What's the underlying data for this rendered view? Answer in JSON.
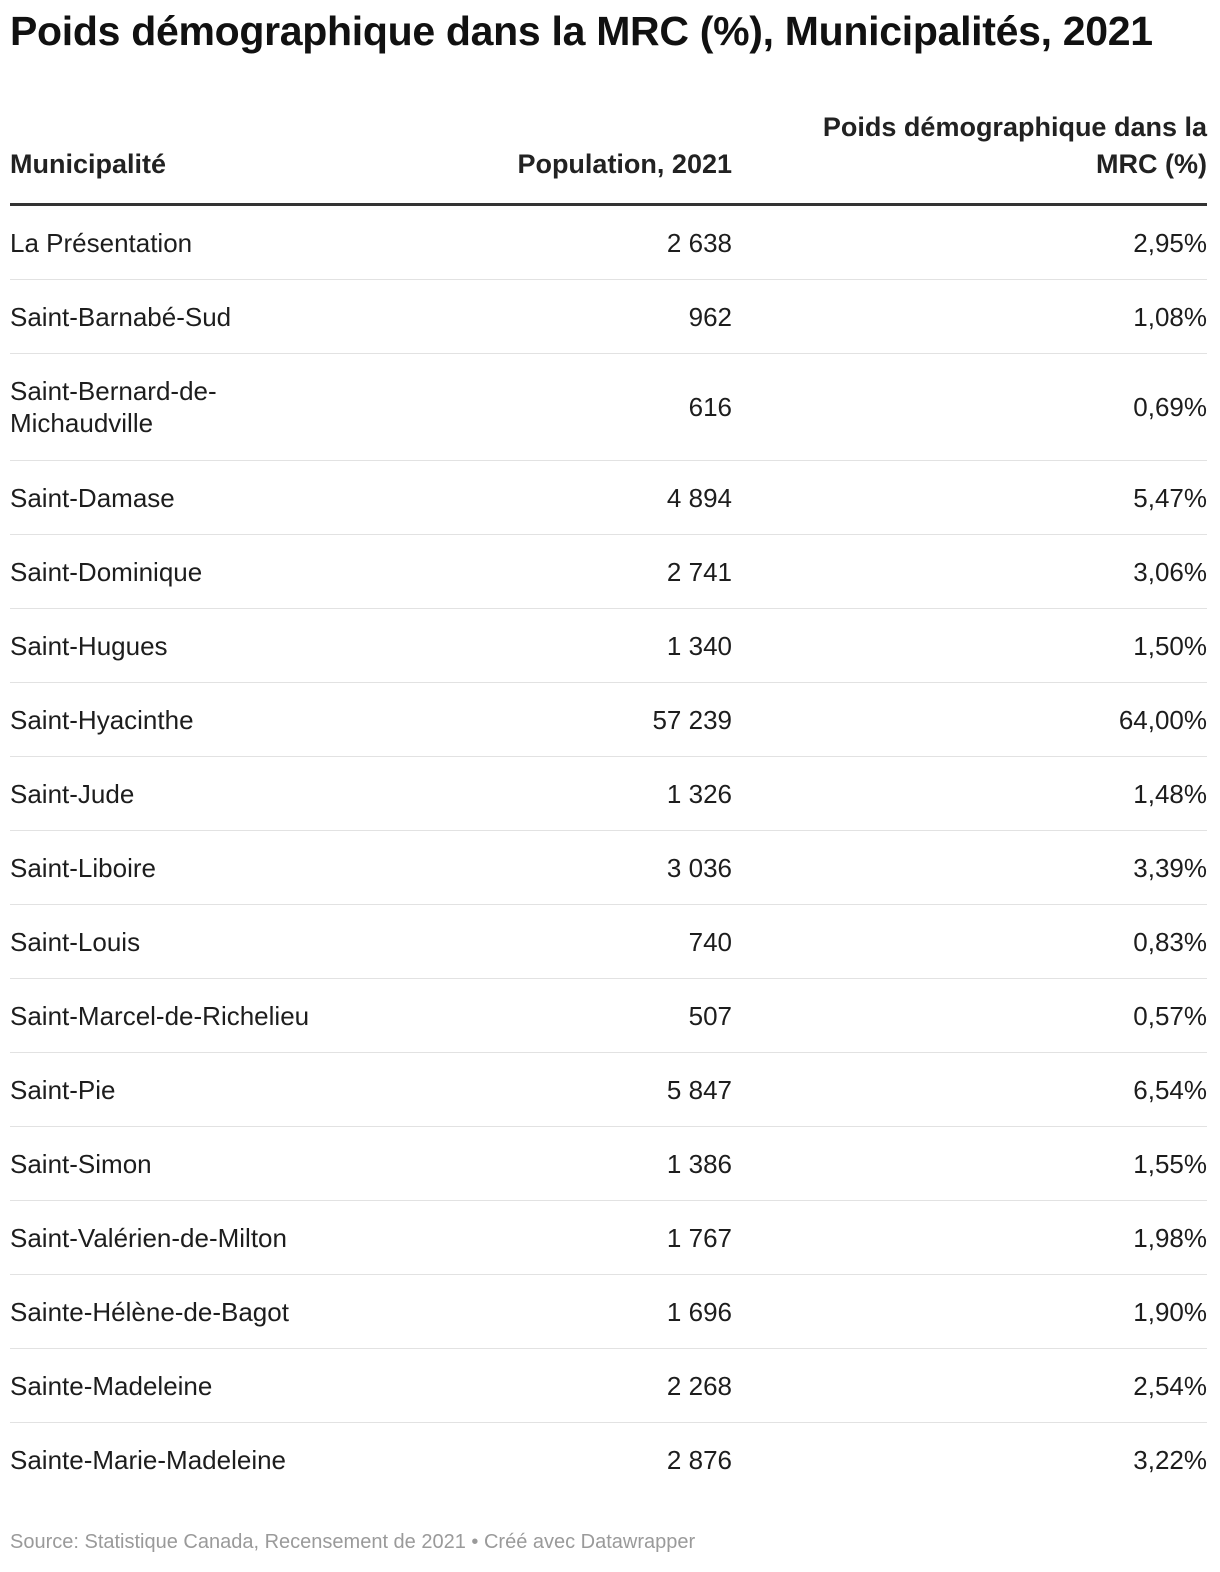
{
  "title": "Poids démographique dans la MRC (%), Municipalités, 2021",
  "headers": {
    "municipality": "Municipalité",
    "population": "Population, 2021",
    "weight": "Poids démographique dans la MRC (%)"
  },
  "rows": [
    {
      "name": "La Présentation",
      "population": "2 638",
      "weight": "2,95%"
    },
    {
      "name": "Saint-Barnabé-Sud",
      "population": "962",
      "weight": "1,08%"
    },
    {
      "name": "Saint-Bernard-de-Michaudville",
      "population": "616",
      "weight": "0,69%"
    },
    {
      "name": "Saint-Damase",
      "population": "4 894",
      "weight": "5,47%"
    },
    {
      "name": "Saint-Dominique",
      "population": "2 741",
      "weight": "3,06%"
    },
    {
      "name": "Saint-Hugues",
      "population": "1 340",
      "weight": "1,50%"
    },
    {
      "name": "Saint-Hyacinthe",
      "population": "57 239",
      "weight": "64,00%"
    },
    {
      "name": "Saint-Jude",
      "population": "1 326",
      "weight": "1,48%"
    },
    {
      "name": "Saint-Liboire",
      "population": "3 036",
      "weight": "3,39%"
    },
    {
      "name": "Saint-Louis",
      "population": "740",
      "weight": "0,83%"
    },
    {
      "name": "Saint-Marcel-de-Richelieu",
      "population": "507",
      "weight": "0,57%"
    },
    {
      "name": "Saint-Pie",
      "population": "5 847",
      "weight": "6,54%"
    },
    {
      "name": "Saint-Simon",
      "population": "1 386",
      "weight": "1,55%"
    },
    {
      "name": "Saint-Valérien-de-Milton",
      "population": "1 767",
      "weight": "1,98%"
    },
    {
      "name": "Sainte-Hélène-de-Bagot",
      "population": "1 696",
      "weight": "1,90%"
    },
    {
      "name": "Sainte-Madeleine",
      "population": "2 268",
      "weight": "2,54%"
    },
    {
      "name": "Sainte-Marie-Madeleine",
      "population": "2 876",
      "weight": "3,22%"
    }
  ],
  "footer": "Source: Statistique Canada, Recensement de 2021 • Créé avec Datawrapper",
  "chart_data": {
    "type": "table",
    "title": "Poids démographique dans la MRC (%), Municipalités, 2021",
    "columns": [
      "Municipalité",
      "Population, 2021",
      "Poids démographique dans la MRC (%)"
    ],
    "categories": [
      "La Présentation",
      "Saint-Barnabé-Sud",
      "Saint-Bernard-de-Michaudville",
      "Saint-Damase",
      "Saint-Dominique",
      "Saint-Hugues",
      "Saint-Hyacinthe",
      "Saint-Jude",
      "Saint-Liboire",
      "Saint-Louis",
      "Saint-Marcel-de-Richelieu",
      "Saint-Pie",
      "Saint-Simon",
      "Saint-Valérien-de-Milton",
      "Sainte-Hélène-de-Bagot",
      "Sainte-Madeleine",
      "Sainte-Marie-Madeleine"
    ],
    "series": [
      {
        "name": "Population, 2021",
        "values": [
          2638,
          962,
          616,
          4894,
          2741,
          1340,
          57239,
          1326,
          3036,
          740,
          507,
          5847,
          1386,
          1767,
          1696,
          2268,
          2876
        ]
      },
      {
        "name": "Poids démographique dans la MRC (%)",
        "values": [
          2.95,
          1.08,
          0.69,
          5.47,
          3.06,
          1.5,
          64.0,
          1.48,
          3.39,
          0.83,
          0.57,
          6.54,
          1.55,
          1.98,
          1.9,
          2.54,
          3.22
        ]
      }
    ]
  }
}
